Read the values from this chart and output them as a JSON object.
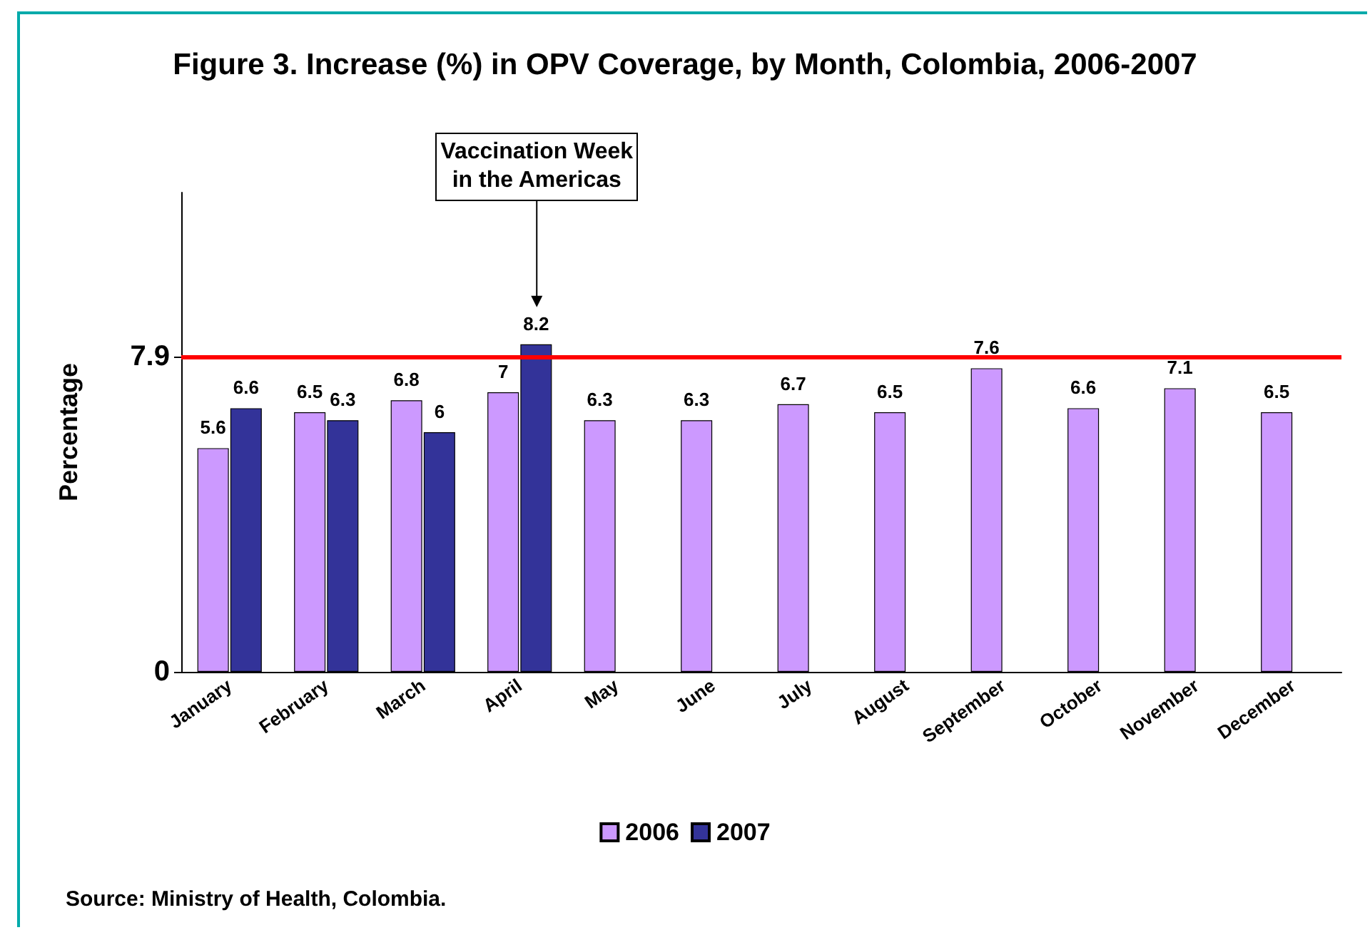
{
  "chart_data": {
    "type": "bar",
    "title": "Figure 3. Increase (%) in OPV Coverage, by Month, Colombia, 2006-2007",
    "ylabel": "Percentage",
    "categories": [
      "January",
      "February",
      "March",
      "April",
      "May",
      "June",
      "July",
      "August",
      "September",
      "October",
      "November",
      "December"
    ],
    "series": [
      {
        "name": "2006",
        "color": "#cc99ff",
        "values": [
          5.6,
          6.5,
          6.8,
          7,
          6.3,
          6.3,
          6.7,
          6.5,
          7.6,
          6.6,
          7.1,
          6.5
        ]
      },
      {
        "name": "2007",
        "color": "#333399",
        "values": [
          6.6,
          6.3,
          6,
          8.2,
          null,
          null,
          null,
          null,
          null,
          null,
          null,
          null
        ]
      }
    ],
    "ylim": [
      0,
      12
    ],
    "yticks": [
      0,
      7.9
    ],
    "legend": "bottom",
    "data_labels": true,
    "ref_lines": [
      {
        "axis": "y",
        "value": 7.9,
        "color": "#ff0000"
      }
    ],
    "annotations": [
      "Vaccination Week in the Americas",
      "Source: Ministry of Health, Colombia."
    ]
  }
}
